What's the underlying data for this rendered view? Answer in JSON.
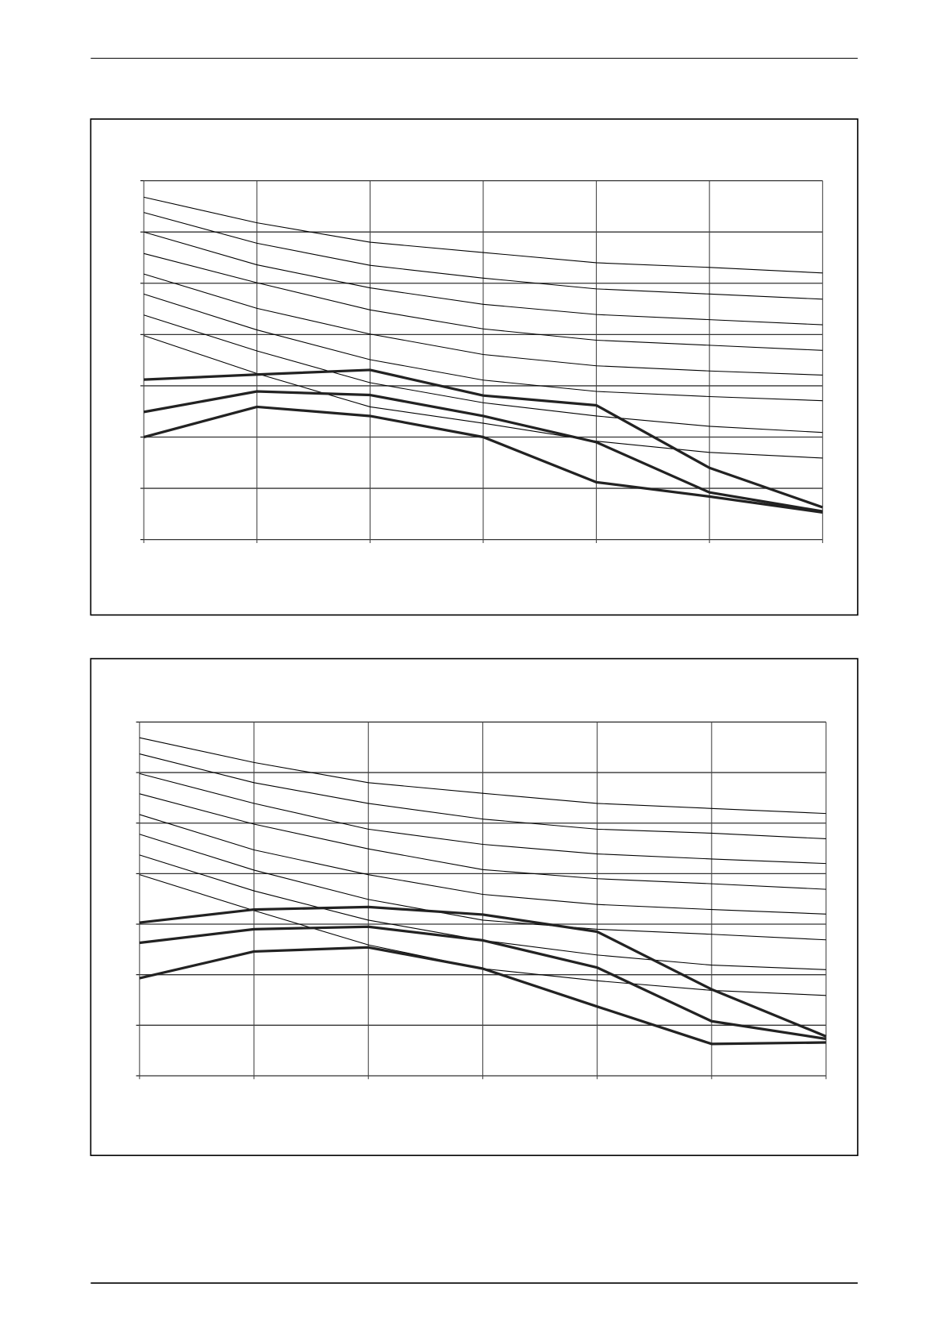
{
  "chart_data": [
    {
      "type": "line",
      "categories": [
        null,
        null,
        null,
        null,
        null,
        null,
        null
      ],
      "ylim": [
        0,
        7
      ],
      "yticks": [
        0,
        1,
        2,
        3,
        4,
        5,
        6,
        7
      ],
      "grid": true,
      "series": [
        {
          "color": "#000000",
          "line_width": 1,
          "values": [
            6.68,
            6.18,
            5.8,
            5.6,
            5.4,
            5.31,
            5.2
          ]
        },
        {
          "color": "#000000",
          "line_width": 1,
          "values": [
            6.38,
            5.78,
            5.35,
            5.1,
            4.89,
            4.79,
            4.69
          ]
        },
        {
          "color": "#000000",
          "line_width": 1,
          "values": [
            6.0,
            5.36,
            4.91,
            4.59,
            4.39,
            4.29,
            4.19
          ]
        },
        {
          "color": "#000000",
          "line_width": 1,
          "values": [
            5.58,
            5.01,
            4.48,
            4.11,
            3.89,
            3.79,
            3.69
          ]
        },
        {
          "color": "#000000",
          "line_width": 1,
          "values": [
            5.18,
            4.51,
            4.01,
            3.61,
            3.39,
            3.29,
            3.21
          ]
        },
        {
          "color": "#000000",
          "line_width": 1,
          "values": [
            4.79,
            4.09,
            3.51,
            3.11,
            2.89,
            2.79,
            2.71
          ]
        },
        {
          "color": "#000000",
          "line_width": 1,
          "values": [
            4.38,
            3.68,
            3.06,
            2.67,
            2.41,
            2.21,
            2.09
          ]
        },
        {
          "color": "#000000",
          "line_width": 1,
          "values": [
            3.98,
            3.24,
            2.59,
            2.27,
            1.92,
            1.7,
            1.59
          ]
        },
        {
          "color": "#222222",
          "line_width": 3,
          "values": [
            3.12,
            3.22,
            3.31,
            2.81,
            2.62,
            1.4,
            0.63
          ]
        },
        {
          "color": "#222222",
          "line_width": 3,
          "values": [
            2.49,
            2.89,
            2.82,
            2.41,
            1.9,
            0.92,
            0.55
          ]
        },
        {
          "color": "#222222",
          "line_width": 3,
          "values": [
            2.0,
            2.59,
            2.41,
            2.0,
            1.12,
            0.84,
            0.53
          ]
        }
      ]
    },
    {
      "type": "line",
      "categories": [
        null,
        null,
        null,
        null,
        null,
        null,
        null
      ],
      "ylim": [
        0,
        7
      ],
      "yticks": [
        0,
        1,
        2,
        3,
        4,
        5,
        6,
        7
      ],
      "grid": true,
      "series": [
        {
          "color": "#000000",
          "line_width": 1,
          "values": [
            6.69,
            6.2,
            5.8,
            5.59,
            5.39,
            5.29,
            5.19
          ]
        },
        {
          "color": "#000000",
          "line_width": 1,
          "values": [
            6.37,
            5.8,
            5.39,
            5.08,
            4.88,
            4.8,
            4.69
          ]
        },
        {
          "color": "#000000",
          "line_width": 1,
          "values": [
            5.98,
            5.39,
            4.88,
            4.58,
            4.39,
            4.29,
            4.2
          ]
        },
        {
          "color": "#000000",
          "line_width": 1,
          "values": [
            5.58,
            4.98,
            4.49,
            4.08,
            3.9,
            3.8,
            3.69
          ]
        },
        {
          "color": "#000000",
          "line_width": 1,
          "values": [
            5.17,
            4.47,
            3.98,
            3.59,
            3.39,
            3.29,
            3.2
          ]
        },
        {
          "color": "#000000",
          "line_width": 1,
          "values": [
            4.78,
            4.07,
            3.49,
            3.08,
            2.9,
            2.8,
            2.69
          ]
        },
        {
          "color": "#000000",
          "line_width": 1,
          "values": [
            4.37,
            3.66,
            3.08,
            2.68,
            2.39,
            2.19,
            2.1
          ]
        },
        {
          "color": "#000000",
          "line_width": 1,
          "values": [
            3.98,
            3.27,
            2.59,
            2.12,
            1.88,
            1.69,
            1.59
          ]
        },
        {
          "color": "#222222",
          "line_width": 3,
          "values": [
            3.03,
            3.29,
            3.34,
            3.19,
            2.85,
            1.71,
            0.78
          ]
        },
        {
          "color": "#222222",
          "line_width": 3,
          "values": [
            2.63,
            2.9,
            2.95,
            2.68,
            2.14,
            1.08,
            0.73
          ]
        },
        {
          "color": "#222222",
          "line_width": 3,
          "values": [
            1.93,
            2.46,
            2.54,
            2.12,
            1.37,
            0.63,
            0.66
          ]
        }
      ]
    }
  ]
}
